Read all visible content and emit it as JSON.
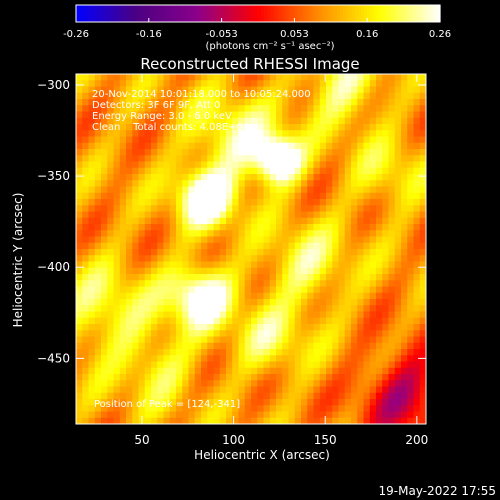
{
  "chart_data": {
    "type": "heatmap",
    "title": "Reconstructed RHESSI Image",
    "xlabel": "Heliocentric X (arcsec)",
    "ylabel": "Heliocentric Y (arcsec)",
    "xlim": [
      14,
      205
    ],
    "ylim": [
      -486,
      -294
    ],
    "x_ticks": [
      50,
      100,
      150,
      200
    ],
    "y_ticks": [
      -300,
      -350,
      -400,
      -450
    ],
    "colorbar": {
      "colormap": "red-temperature with blue/purple negative end",
      "range": [
        -0.26,
        0.26
      ],
      "ticks": [
        "-0.26",
        "-0.16",
        "-0.053",
        "0.053",
        "0.16",
        "0.26"
      ],
      "unit_label": "(photons cm⁻² s⁻¹ asec⁻²)",
      "colors": [
        "#0000ff",
        "#4b0082",
        "#8b008b",
        "#ff0000",
        "#ff8c00",
        "#ffff00",
        "#ffffff"
      ]
    },
    "annotations": [
      "20-Nov-2014 10:01:18.000 to 10:05:24.000",
      "Detectors: 3F 6F 9F, Att 0",
      "Energy Range: 3.0 - 6.0 keV",
      "Clean    Total counts: 4.08E+04"
    ],
    "peak_label": "Position of Peak = [124,-341]",
    "peak_position": [
      124,
      -341
    ],
    "sources": [
      {
        "x": 124,
        "y": -341,
        "sigma": 9,
        "amp": 0.25
      },
      {
        "x": 85,
        "y": -362,
        "sigma": 11,
        "amp": 0.22
      },
      {
        "x": 82,
        "y": -416,
        "sigma": 12,
        "amp": 0.2
      },
      {
        "x": 100,
        "y": -330,
        "sigma": 16,
        "amp": 0.12
      },
      {
        "x": 160,
        "y": -300,
        "sigma": 15,
        "amp": 0.12
      },
      {
        "x": 140,
        "y": -400,
        "sigma": 16,
        "amp": 0.1
      },
      {
        "x": 30,
        "y": -425,
        "sigma": 18,
        "amp": 0.1
      },
      {
        "x": 120,
        "y": -440,
        "sigma": 14,
        "amp": 0.09
      },
      {
        "x": 60,
        "y": -455,
        "sigma": 14,
        "amp": 0.08
      },
      {
        "x": 185,
        "y": -350,
        "sigma": 14,
        "amp": 0.07
      }
    ],
    "background_level": 0.1,
    "negative_region": {
      "x": 195,
      "y": -470,
      "sigma": 18,
      "amp": -0.14
    }
  },
  "timestamp": "19-May-2022 17:55"
}
